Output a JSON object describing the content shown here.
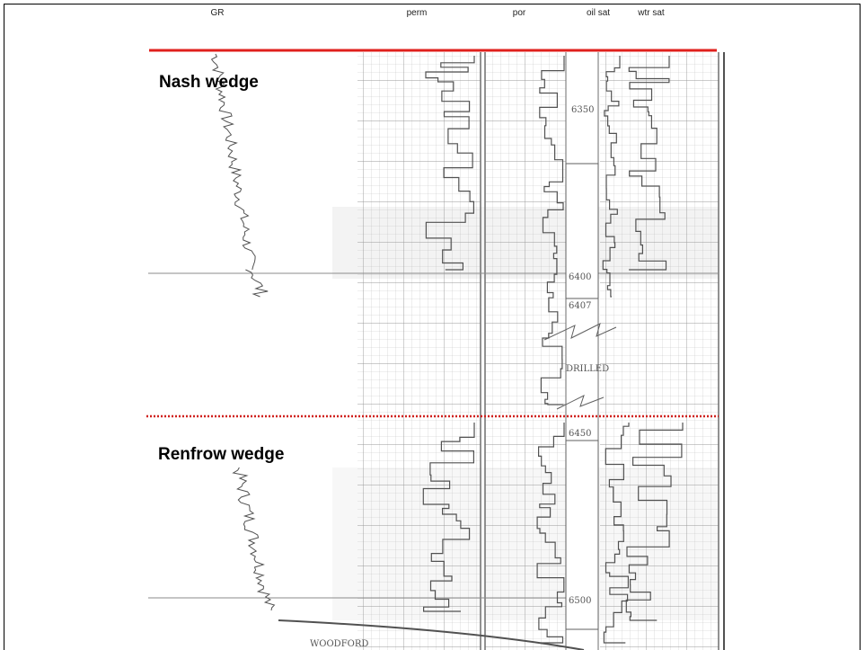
{
  "header": {
    "columns": [
      "GR",
      "perm",
      "por",
      "oil sat",
      "wtr sat"
    ]
  },
  "sections": [
    "Nash wedge",
    "Renfrow wedge"
  ],
  "depth_marks": [
    "6350",
    "6400",
    "6407",
    "6450",
    "6500"
  ],
  "log_notes": [
    "DRILLED",
    "WOODFORD"
  ]
}
